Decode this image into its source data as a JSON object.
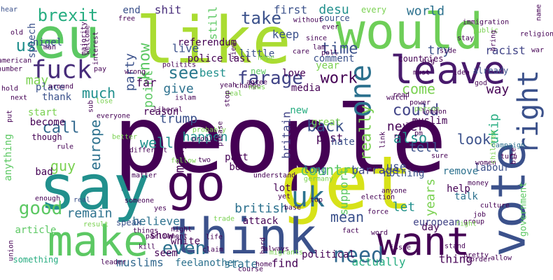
{
  "palette": [
    "#440154",
    "#472c7a",
    "#3b518b",
    "#2c718e",
    "#21908d",
    "#27ad81",
    "#5cc863",
    "#aadc32",
    "#fde725"
  ],
  "words": [
    {
      "text": "people",
      "color": "#440154"
    },
    {
      "text": "like",
      "color": "#aadc32"
    },
    {
      "text": "get",
      "color": "#d7e219"
    },
    {
      "text": "say",
      "color": "#21908d"
    },
    {
      "text": "would",
      "color": "#6ece58"
    },
    {
      "text": "eu",
      "color": "#5cc863"
    },
    {
      "text": "think",
      "color": "#3b518b"
    },
    {
      "text": "make",
      "color": "#5cc863"
    },
    {
      "text": "go",
      "color": "#440154"
    },
    {
      "text": "vote",
      "color": "#3b518b"
    },
    {
      "text": "want",
      "color": "#440154"
    },
    {
      "text": "leave",
      "color": "#481a6c"
    },
    {
      "text": "fuck",
      "color": "#472c7a"
    },
    {
      "text": "one",
      "color": "#2c718e"
    },
    {
      "text": "uk",
      "color": "#2c718e"
    },
    {
      "text": "right",
      "color": "#3b518b"
    },
    {
      "text": "farage",
      "color": "#414487"
    },
    {
      "text": "take",
      "color": "#3b518b"
    },
    {
      "text": "brexit",
      "color": "#27ad81"
    },
    {
      "text": "see",
      "color": "#2a788e"
    },
    {
      "text": "good",
      "color": "#5cc863"
    },
    {
      "text": "even",
      "color": "#2c718e"
    },
    {
      "text": "need",
      "color": "#31688e"
    },
    {
      "text": "us",
      "color": "#21908d"
    },
    {
      "text": "know",
      "color": "#5cc863"
    },
    {
      "text": "time",
      "color": "#3b518b"
    },
    {
      "text": "could",
      "color": "#414487"
    },
    {
      "text": "world",
      "color": "#2c718e"
    },
    {
      "text": "much",
      "color": "#21908d"
    },
    {
      "text": "back",
      "color": "#3b518b"
    },
    {
      "text": "call",
      "color": "#31688e"
    },
    {
      "text": "come",
      "color": "#7ad151"
    },
    {
      "text": "well",
      "color": "#21908d"
    },
    {
      "text": "ukip",
      "color": "#27ad81"
    },
    {
      "text": "country",
      "color": "#5cc863"
    },
    {
      "text": "really",
      "color": "#7ad151"
    },
    {
      "text": "also",
      "color": "#21908d"
    },
    {
      "text": "tell",
      "color": "#3b518b"
    },
    {
      "text": "look",
      "color": "#3b518b"
    },
    {
      "text": "mean",
      "color": "#3b518b"
    },
    {
      "text": "let",
      "color": "#21908d"
    },
    {
      "text": "work",
      "color": "#440154"
    },
    {
      "text": "europe",
      "color": "#2c718e"
    },
    {
      "text": "many",
      "color": "#440154"
    },
    {
      "text": "party",
      "color": "#3b518b"
    },
    {
      "text": "point",
      "color": "#5cc863"
    },
    {
      "text": "trump",
      "color": "#3b518b"
    },
    {
      "text": "happen",
      "color": "#21908d"
    },
    {
      "text": "british",
      "color": "#2c718e"
    },
    {
      "text": "britain",
      "color": "#414487"
    },
    {
      "text": "years",
      "color": "#7ad151"
    },
    {
      "text": "guy",
      "color": "#7ad151"
    },
    {
      "text": "way",
      "color": "#440154"
    },
    {
      "text": "try",
      "color": "#3b518b"
    },
    {
      "text": "give",
      "color": "#2c718e"
    },
    {
      "text": "never",
      "color": "#440154"
    },
    {
      "text": "may",
      "color": "#7ad151"
    },
    {
      "text": "desu",
      "color": "#21908d"
    },
    {
      "text": "shit",
      "color": "#472c7a"
    },
    {
      "text": "still",
      "color": "#5cc863"
    },
    {
      "text": "keep",
      "color": "#3b518b"
    },
    {
      "text": "first",
      "color": "#3b518b"
    },
    {
      "text": "racist",
      "color": "#414487"
    },
    {
      "text": "nigel",
      "color": "#3b518b"
    },
    {
      "text": "best",
      "color": "#21908d"
    },
    {
      "text": "live",
      "color": "#3b518b"
    },
    {
      "text": "post",
      "color": "#440154"
    },
    {
      "text": "use",
      "color": "#3b518b"
    },
    {
      "text": "new",
      "color": "#27ad81"
    },
    {
      "text": "great",
      "color": "#7ad151"
    },
    {
      "text": "remain",
      "color": "#2c718e"
    },
    {
      "text": "believe",
      "color": "#2c718e"
    },
    {
      "text": "barrage",
      "color": "#414487"
    },
    {
      "text": "actually",
      "color": "#27ad81"
    },
    {
      "text": "thing",
      "color": "#440154"
    },
    {
      "text": "muslims",
      "color": "#31688e"
    },
    {
      "text": "find",
      "color": "#440154"
    },
    {
      "text": "state",
      "color": "#2c718e"
    },
    {
      "text": "european",
      "color": "#414487"
    },
    {
      "text": "government",
      "color": "#5cc863"
    },
    {
      "text": "muslim",
      "color": "#440154"
    },
    {
      "text": "labour",
      "color": "#3b518b"
    },
    {
      "text": "support",
      "color": "#5cc863"
    },
    {
      "text": "far",
      "color": "#440154"
    },
    {
      "text": "white",
      "color": "#440154"
    },
    {
      "text": "feel",
      "color": "#2c718e"
    },
    {
      "text": "seem",
      "color": "#440154"
    },
    {
      "text": "day",
      "color": "#440154"
    },
    {
      "text": "talk",
      "color": "#2c718e"
    },
    {
      "text": "help",
      "color": "#440154"
    },
    {
      "text": "remove",
      "color": "#2c718e"
    },
    {
      "text": "nothing",
      "color": "#3b518b"
    },
    {
      "text": "lot",
      "color": "#440154"
    },
    {
      "text": "political",
      "color": "#440154"
    },
    {
      "text": "love",
      "color": "#440154"
    },
    {
      "text": "comment",
      "color": "#3b518b"
    },
    {
      "text": "media",
      "color": "#440154"
    },
    {
      "text": "bot",
      "color": "#440154"
    },
    {
      "text": "part",
      "color": "#440154"
    },
    {
      "text": "reason",
      "color": "#440154"
    },
    {
      "text": "place",
      "color": "#3b518b"
    },
    {
      "text": "bad",
      "color": "#440154"
    },
    {
      "text": "thank",
      "color": "#3b518b"
    },
    {
      "text": "start",
      "color": "#7ad151"
    },
    {
      "text": "become",
      "color": "#440154"
    },
    {
      "text": "though",
      "color": "#440154"
    },
    {
      "text": "anything",
      "color": "#5cc863"
    },
    {
      "text": "article",
      "color": "#5cc863"
    },
    {
      "text": "something",
      "color": "#27ad81"
    },
    {
      "text": "another",
      "color": "#2c718e"
    },
    {
      "text": "attack",
      "color": "#440154"
    },
    {
      "text": "show",
      "color": "#440154"
    },
    {
      "text": "hate",
      "color": "#3b518b"
    },
    {
      "text": "long",
      "color": "#2c718e"
    },
    {
      "text": "countries",
      "color": "#440154"
    },
    {
      "text": "already",
      "color": "#3b518b"
    },
    {
      "text": "police",
      "color": "#440154"
    },
    {
      "text": "referendum",
      "color": "#440154"
    },
    {
      "text": "last",
      "color": "#440154"
    },
    {
      "text": "little",
      "color": "#3b518b"
    },
    {
      "text": "year",
      "color": "#7ad151"
    },
    {
      "text": "end",
      "color": "#3b518b"
    },
    {
      "text": "every",
      "color": "#7ad151"
    },
    {
      "text": "source",
      "color": "#3b518b"
    },
    {
      "text": "new",
      "color": "#5cc863"
    },
    {
      "text": "hear",
      "color": "#3b518b"
    },
    {
      "text": "free",
      "color": "#440154"
    },
    {
      "text": "old",
      "color": "#440154"
    },
    {
      "text": "speech",
      "color": "#3b518b"
    },
    {
      "text": "man",
      "color": "#440154"
    },
    {
      "text": "american",
      "color": "#440154"
    },
    {
      "text": "number",
      "color": "#440154"
    },
    {
      "text": "pay",
      "color": "#440154"
    },
    {
      "text": "hold",
      "color": "#440154"
    },
    {
      "text": "around",
      "color": "#440154"
    },
    {
      "text": "next",
      "color": "#440154"
    },
    {
      "text": "put",
      "color": "#440154"
    },
    {
      "text": "rule",
      "color": "#440154"
    },
    {
      "text": "enough",
      "color": "#440154"
    },
    {
      "text": "real",
      "color": "#3b518b"
    },
    {
      "text": "result",
      "color": "#7ad151"
    },
    {
      "text": "speak",
      "color": "#3b518b"
    },
    {
      "text": "things",
      "color": "#440154"
    },
    {
      "text": "someone",
      "color": "#440154"
    },
    {
      "text": "yes",
      "color": "#440154"
    },
    {
      "text": "kill",
      "color": "#440154"
    },
    {
      "text": "leader",
      "color": "#440154"
    },
    {
      "text": "union",
      "color": "#440154"
    },
    {
      "text": "parliament",
      "color": "#440154"
    },
    {
      "text": "night",
      "color": "#440154"
    },
    {
      "text": "life",
      "color": "#440154"
    },
    {
      "text": "claim",
      "color": "#440154"
    },
    {
      "text": "home",
      "color": "#440154"
    },
    {
      "text": "course",
      "color": "#440154"
    },
    {
      "text": "always",
      "color": "#440154"
    },
    {
      "text": "hard",
      "color": "#440154"
    },
    {
      "text": "migrants",
      "color": "#7ad151"
    },
    {
      "text": "base",
      "color": "#440154"
    },
    {
      "text": "force",
      "color": "#440154"
    },
    {
      "text": "election",
      "color": "#440154"
    },
    {
      "text": "anyone",
      "color": "#440154"
    },
    {
      "text": "fact",
      "color": "#440154"
    },
    {
      "text": "word",
      "color": "#440154"
    },
    {
      "text": "issue",
      "color": "#440154"
    },
    {
      "text": "group",
      "color": "#440154"
    },
    {
      "text": "stand",
      "color": "#440154"
    },
    {
      "text": "pretty",
      "color": "#440154"
    },
    {
      "text": "border",
      "color": "#440154"
    },
    {
      "text": "allow",
      "color": "#440154"
    },
    {
      "text": "fight",
      "color": "#7ad151"
    },
    {
      "text": "sure",
      "color": "#440154"
    },
    {
      "text": "women",
      "color": "#440154"
    },
    {
      "text": "culture",
      "color": "#440154"
    },
    {
      "text": "money",
      "color": "#440154"
    },
    {
      "text": "children",
      "color": "#7ad151"
    },
    {
      "text": "campaign",
      "color": "#2c718e"
    },
    {
      "text": "turn",
      "color": "#440154"
    },
    {
      "text": "bite",
      "color": "#440154"
    },
    {
      "text": "idea",
      "color": "#440154"
    },
    {
      "text": "god",
      "color": "#440154"
    },
    {
      "text": "side",
      "color": "#440154"
    },
    {
      "text": "immigration",
      "color": "#440154"
    },
    {
      "text": "public",
      "color": "#7ad151"
    },
    {
      "text": "stay",
      "color": "#440154"
    },
    {
      "text": "bring",
      "color": "#440154"
    },
    {
      "text": "name",
      "color": "#440154"
    },
    {
      "text": "religion",
      "color": "#440154"
    },
    {
      "text": "war",
      "color": "#440154"
    },
    {
      "text": "big",
      "color": "#440154"
    },
    {
      "text": "must",
      "color": "#440154"
    },
    {
      "text": "read",
      "color": "#440154"
    },
    {
      "text": "watch",
      "color": "#440154"
    },
    {
      "text": "power",
      "color": "#440154"
    },
    {
      "text": "person",
      "color": "#7ad151"
    },
    {
      "text": "london",
      "color": "#440154"
    },
    {
      "text": "ask",
      "color": "#440154"
    },
    {
      "text": "run",
      "color": "#440154"
    },
    {
      "text": "pm",
      "color": "#440154"
    },
    {
      "text": "link",
      "color": "#440154"
    },
    {
      "text": "understand",
      "color": "#440154"
    },
    {
      "text": "germany",
      "color": "#7ad151"
    },
    {
      "text": "top",
      "color": "#440154"
    },
    {
      "text": "yet",
      "color": "#440154"
    },
    {
      "text": "since",
      "color": "#440154"
    },
    {
      "text": "lam",
      "color": "#440154"
    },
    {
      "text": "poll",
      "color": "#440154"
    },
    {
      "text": "care",
      "color": "#440154"
    },
    {
      "text": "without",
      "color": "#440154"
    },
    {
      "text": "ever",
      "color": "#440154"
    },
    {
      "text": "view",
      "color": "#440154"
    },
    {
      "text": "welcome",
      "color": "#440154"
    },
    {
      "text": "majority",
      "color": "#440154"
    },
    {
      "text": "interest",
      "color": "#440154"
    },
    {
      "text": "politics",
      "color": "#440154"
    },
    {
      "text": "wrong",
      "color": "#440154"
    },
    {
      "text": "yeah",
      "color": "#440154"
    },
    {
      "text": "everyone",
      "color": "#440154"
    },
    {
      "text": "liberal",
      "color": "#440154"
    },
    {
      "text": "probably",
      "color": "#7ad151"
    },
    {
      "text": "please",
      "color": "#440154"
    },
    {
      "text": "problem",
      "color": "#440154"
    },
    {
      "text": "different",
      "color": "#440154"
    },
    {
      "text": "better",
      "color": "#7ad151"
    },
    {
      "text": "two",
      "color": "#440154"
    },
    {
      "text": "follow",
      "color": "#7ad151"
    },
    {
      "text": "matter",
      "color": "#440154"
    },
    {
      "text": "islam",
      "color": "#440154"
    },
    {
      "text": "deal",
      "color": "#7ad151"
    },
    {
      "text": "change",
      "color": "#440154"
    },
    {
      "text": "stop",
      "color": "#440154"
    },
    {
      "text": "trade",
      "color": "#7ad151"
    },
    {
      "text": "job",
      "color": "#440154"
    },
    {
      "text": "lose",
      "color": "#7ad151"
    },
    {
      "text": "sub",
      "color": "#440154"
    },
    {
      "text": "hope",
      "color": "#7ad151"
    },
    {
      "text": "agree",
      "color": "#440154"
    },
    {
      "text": "news",
      "color": "#7ad151"
    },
    {
      "text": "cause",
      "color": "#440154"
    },
    {
      "text": "everything",
      "color": "#440154"
    },
    {
      "text": "on",
      "color": "#440154"
    }
  ]
}
